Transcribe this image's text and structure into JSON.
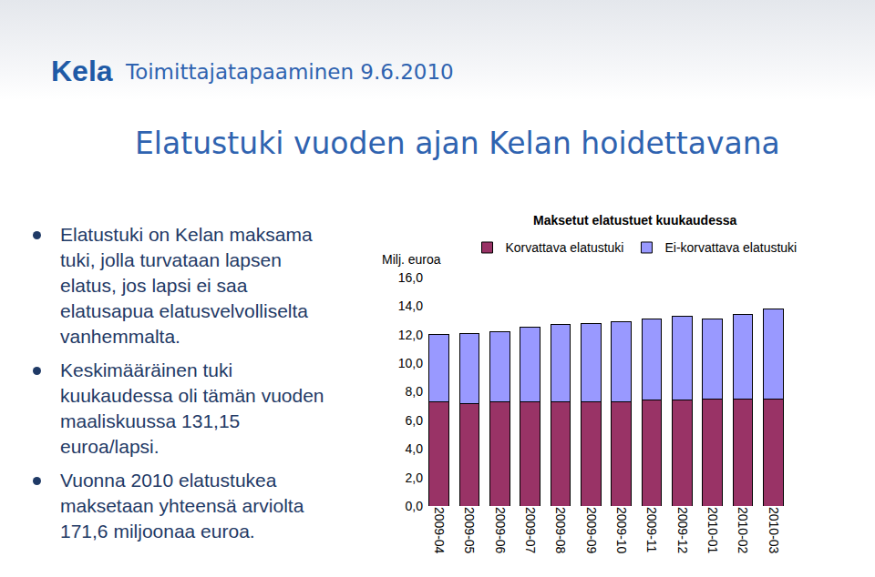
{
  "slide": {
    "logo": "Kela",
    "header": "Toimittajatapaaminen 9.6.2010",
    "title": "Elatustuki vuoden ajan Kelan hoidettavana",
    "bullets": [
      [
        "Elatustuki on Kelan maksama",
        "tuki, jolla turvataan lapsen",
        "elatus, jos lapsi ei saa",
        "elatusapua elatusvelvolliselta",
        "vanhemmalta."
      ],
      [
        "Keskimääräinen tuki",
        "kuukaudessa oli tämän vuoden",
        "maaliskuussa 131,15",
        "euroa/lapsi."
      ],
      [
        "Vuonna 2010 elatustukea",
        "maksetaan yhteensä arviolta",
        "171,6 miljoonaa euroa."
      ]
    ]
  },
  "chart_data": {
    "type": "bar",
    "title": "Maksetut elatustuet kuukaudessa",
    "y_label": "Milj. euroa",
    "stacked": true,
    "legend": "top",
    "grid": false,
    "categories": [
      "2009-04",
      "2009-05",
      "2009-06",
      "2009-07",
      "2009-08",
      "2009-09",
      "2009-10",
      "2009-11",
      "2009-12",
      "2010-01",
      "2010-02",
      "2010-03"
    ],
    "series": [
      {
        "name": "Korvattava elatustuki",
        "color": "#993366",
        "values": [
          7.3,
          7.2,
          7.3,
          7.3,
          7.3,
          7.3,
          7.3,
          7.4,
          7.4,
          7.5,
          7.5,
          7.5
        ]
      },
      {
        "name": "Ei-korvattava elatustuki",
        "color": "#9999ff",
        "values": [
          4.7,
          4.9,
          4.9,
          5.2,
          5.4,
          5.5,
          5.6,
          5.7,
          5.9,
          5.6,
          5.9,
          6.3
        ]
      }
    ],
    "ylim": [
      0,
      16
    ],
    "yticks": [
      {
        "value": 0,
        "label": "0,0"
      },
      {
        "value": 2,
        "label": "2,0"
      },
      {
        "value": 4,
        "label": "4,0"
      },
      {
        "value": 6,
        "label": "6,0"
      },
      {
        "value": 8,
        "label": "8,0"
      },
      {
        "value": 10,
        "label": "10,0"
      },
      {
        "value": 12,
        "label": "12,0"
      },
      {
        "value": 14,
        "label": "14,0"
      },
      {
        "value": 16,
        "label": "16,0"
      }
    ]
  }
}
